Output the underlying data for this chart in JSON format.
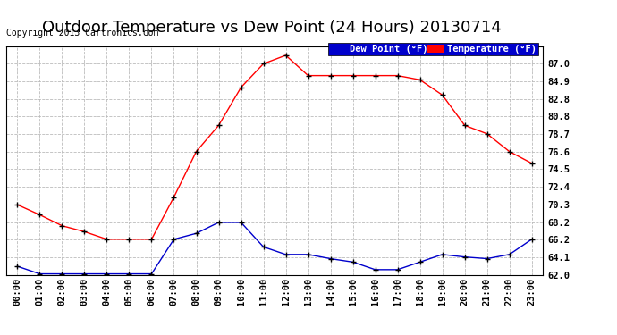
{
  "title": "Outdoor Temperature vs Dew Point (24 Hours) 20130714",
  "copyright": "Copyright 2013 Cartronics.com",
  "hours": [
    "00:00",
    "01:00",
    "02:00",
    "03:00",
    "04:00",
    "05:00",
    "06:00",
    "07:00",
    "08:00",
    "09:00",
    "10:00",
    "11:00",
    "12:00",
    "13:00",
    "14:00",
    "15:00",
    "16:00",
    "17:00",
    "18:00",
    "19:00",
    "20:00",
    "21:00",
    "22:00",
    "23:00"
  ],
  "temperature": [
    70.3,
    69.1,
    67.8,
    67.1,
    66.2,
    66.2,
    66.2,
    71.2,
    76.6,
    79.7,
    84.2,
    87.0,
    88.0,
    85.6,
    85.6,
    85.6,
    85.6,
    85.6,
    85.1,
    83.3,
    79.7,
    78.7,
    76.6,
    75.2
  ],
  "dew_point": [
    63.0,
    62.1,
    62.1,
    62.1,
    62.1,
    62.1,
    62.1,
    66.2,
    66.9,
    68.2,
    68.2,
    65.3,
    64.4,
    64.4,
    63.9,
    63.5,
    62.6,
    62.6,
    63.5,
    64.4,
    64.1,
    63.9,
    64.4,
    66.2
  ],
  "temp_color": "#ff0000",
  "dew_color": "#0000cc",
  "bg_color": "#ffffff",
  "plot_bg": "#ffffff",
  "grid_color": "#bbbbbb",
  "ylim": [
    62.0,
    89.0
  ],
  "yticks": [
    62.0,
    64.1,
    66.2,
    68.2,
    70.3,
    72.4,
    74.5,
    76.6,
    78.7,
    80.8,
    82.8,
    84.9,
    87.0
  ],
  "legend_dew_label": "Dew Point (°F)",
  "legend_temp_label": "Temperature (°F)",
  "title_fontsize": 13,
  "label_fontsize": 7.5,
  "copyright_fontsize": 7
}
